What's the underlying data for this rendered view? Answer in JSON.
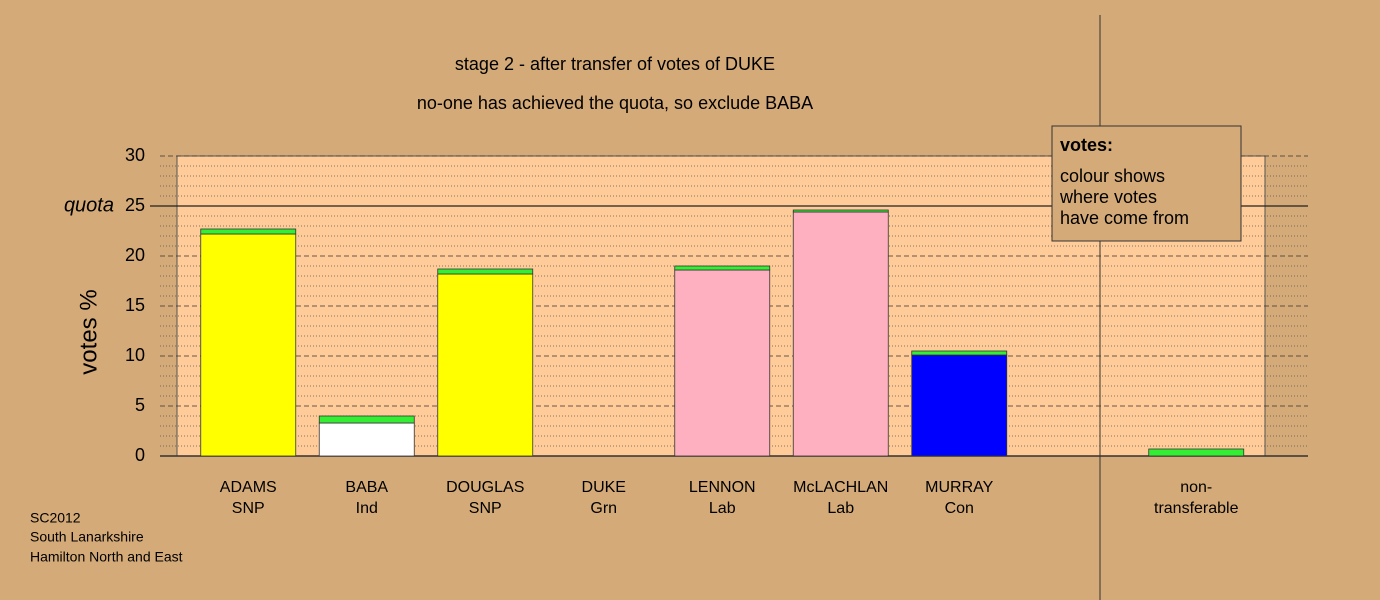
{
  "chart_data": {
    "type": "stacked_bar",
    "title": "stage 2 - after transfer of votes of DUKE",
    "subtitle": "no-one has achieved the quota, so exclude BABA",
    "y_label": "votes %",
    "categories": [
      "ADAMS",
      "BABA",
      "DOUGLAS",
      "DUKE",
      "LENNON",
      "McLACHLAN",
      "MURRAY",
      null,
      "non-"
    ],
    "sublabels": [
      "SNP",
      "Ind",
      "SNP",
      "Grn",
      "Lab",
      "Lab",
      "Con",
      null,
      "transferable"
    ],
    "series": [
      {
        "values": [
          22.2,
          3.3,
          18.2,
          0,
          18.6,
          24.4,
          10.1,
          null,
          0
        ],
        "colors": [
          "#ffff00",
          "#ffffff",
          "#ffff00",
          "#33ee33",
          "#ffb0c0",
          "#ffb0c0",
          "#0000ff",
          null,
          "#33ee33"
        ]
      },
      {
        "values": [
          0.5,
          0.7,
          0.5,
          0,
          0.4,
          0.2,
          0.4,
          null,
          0.7
        ],
        "color": "#33ee33"
      }
    ],
    "ylim": [
      0,
      30
    ],
    "yticks": [
      0,
      5,
      10,
      15,
      20,
      25,
      30
    ],
    "minor_yticks": [
      1,
      2,
      3,
      4,
      6,
      7,
      8,
      9,
      11,
      12,
      13,
      14,
      16,
      17,
      18,
      19,
      21,
      22,
      23,
      24,
      26,
      27,
      28,
      29
    ],
    "quota": 25,
    "quota_label": "quota",
    "note": {
      "title": "votes:",
      "lines": [
        "colour shows",
        "where votes",
        "have come from"
      ]
    },
    "footer": [
      "SC2012",
      "South Lanarkshire",
      "Hamilton North and East"
    ]
  }
}
